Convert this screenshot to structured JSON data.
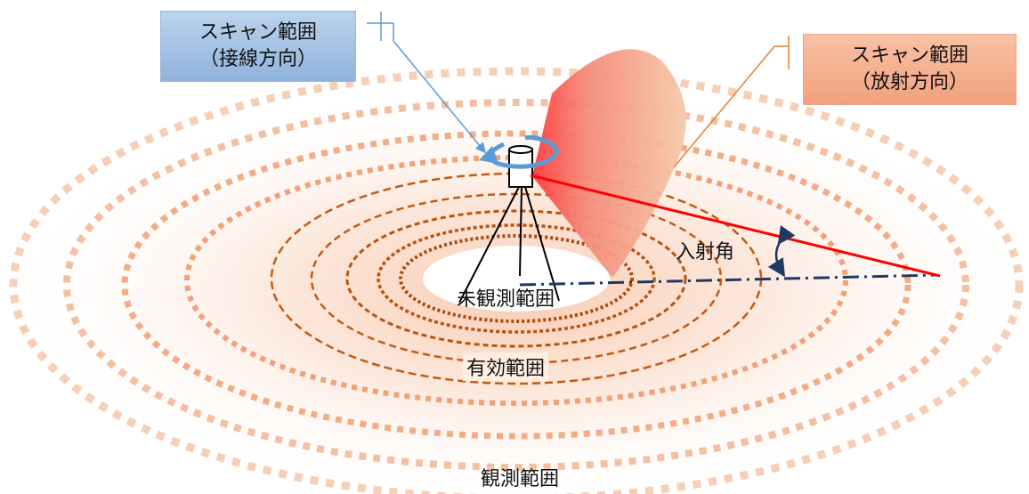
{
  "callouts": {
    "tangential": {
      "line1": "スキャン範囲",
      "line2": "（接線方向）"
    },
    "radial": {
      "line1": "スキャン範囲",
      "line2": "（放射方向）"
    }
  },
  "labels": {
    "unobserved": "未観測範囲",
    "effective": "有効範囲",
    "observed": "観測範囲",
    "incidence": "入射角"
  },
  "colors": {
    "tangential_fill": "#8fb3dd",
    "radial_fill": "#f2a07d",
    "tangential_line": "#5b9bd5",
    "radial_line": "#ed7d31",
    "effective_ring": "#c55a11",
    "observed_ring": "#f4b183",
    "beam": "#ff0000",
    "ground_line": "#1f3864"
  },
  "icons": {
    "rotation": "rotation-arrow-icon",
    "scanner": "laser-scanner-icon"
  }
}
